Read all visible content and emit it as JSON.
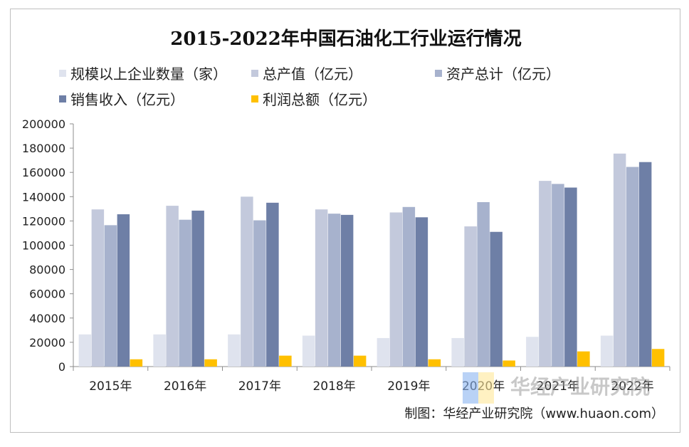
{
  "chart_data": {
    "type": "bar",
    "title": "2015-2022年中国石油化工行业运行情况",
    "categories": [
      "2015年",
      "2016年",
      "2017年",
      "2018年",
      "2019年",
      "2020年",
      "2021年",
      "2022年"
    ],
    "series": [
      {
        "name": "规模以上企业数量（家）",
        "color": "#dfe3ee",
        "values": [
          26500,
          26500,
          26500,
          25500,
          23500,
          23500,
          24500,
          25500
        ]
      },
      {
        "name": "总产值（亿元）",
        "color": "#c3c9dc",
        "values": [
          129500,
          132500,
          140000,
          129500,
          127000,
          115500,
          153000,
          175500
        ]
      },
      {
        "name": "资产总计（亿元）",
        "color": "#a7b2cd",
        "values": [
          116500,
          121000,
          120500,
          126000,
          131500,
          135500,
          150500,
          164500
        ]
      },
      {
        "name": "销售收入（亿元）",
        "color": "#6e7fa6",
        "values": [
          125500,
          128500,
          135000,
          125000,
          123000,
          111000,
          147500,
          168500
        ]
      },
      {
        "name": "利润总额（亿元）",
        "color": "#ffc000",
        "values": [
          6000,
          6000,
          9000,
          9000,
          6000,
          5000,
          12500,
          14500
        ]
      }
    ],
    "ylim": [
      0,
      200000
    ],
    "yticks": [
      0,
      20000,
      40000,
      60000,
      80000,
      100000,
      120000,
      140000,
      160000,
      180000,
      200000
    ],
    "xlabel": "",
    "ylabel": "",
    "legend_position": "top"
  },
  "credit": "制图：华经产业研究院（www.huaon.com）",
  "watermark": "华经产业研究院"
}
